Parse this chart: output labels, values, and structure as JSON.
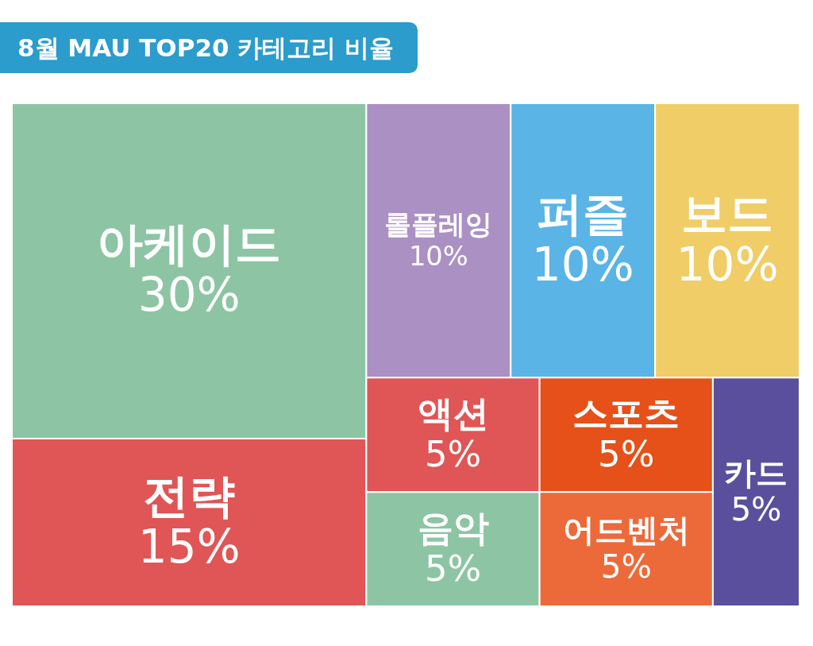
{
  "chart_data": {
    "type": "other",
    "title": "8월 MAU TOP20 카테고리 비율",
    "categories": [
      "아케이드",
      "전략",
      "롤플레잉",
      "퍼즐",
      "보드",
      "액션",
      "음악",
      "스포츠",
      "어드벤처",
      "카드"
    ],
    "values": [
      30,
      15,
      10,
      10,
      10,
      5,
      5,
      5,
      5,
      5
    ],
    "value_labels": [
      "30%",
      "15%",
      "10%",
      "10%",
      "10%",
      "5%",
      "5%",
      "5%",
      "5%",
      "5%"
    ],
    "colors": [
      "#8dc5a4",
      "#e05555",
      "#ab90c4",
      "#5ab4e6",
      "#f0cd66",
      "#e05555",
      "#8dc5a4",
      "#e55119",
      "#ec6a3a",
      "#5a4f9d"
    ]
  }
}
